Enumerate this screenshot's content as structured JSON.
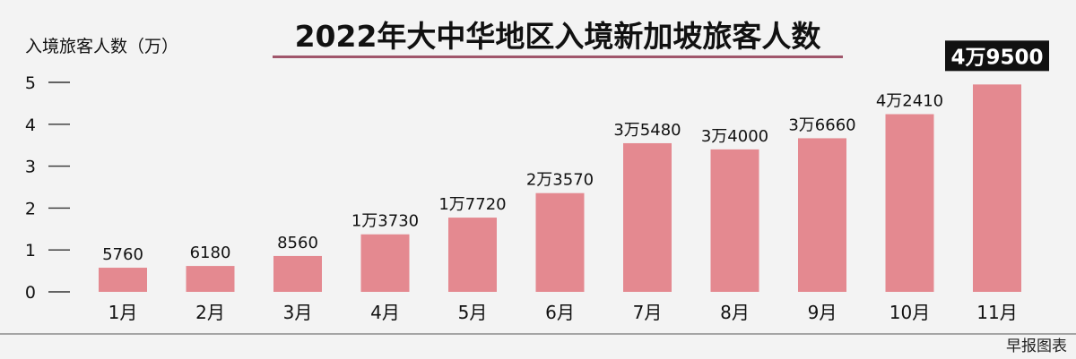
{
  "source": "早报图表",
  "chart_data": {
    "type": "bar",
    "title": "2022年大中华地区入境新加坡旅客人数",
    "ylabel": "入境旅客人数（万）",
    "ylim": [
      0,
      5
    ],
    "yticks": [
      "0",
      "1",
      "2",
      "3",
      "4",
      "5"
    ],
    "grid": false,
    "bar_color": "#e48990",
    "highlight_label_bg": "#111111",
    "categories": [
      "1月",
      "2月",
      "3月",
      "4月",
      "5月",
      "6月",
      "7月",
      "8月",
      "9月",
      "10月",
      "11月"
    ],
    "values": [
      0.576,
      0.618,
      0.856,
      1.373,
      1.772,
      2.357,
      3.548,
      3.4,
      3.666,
      4.241,
      4.95
    ],
    "data_labels": [
      "5760",
      "6180",
      "8560",
      "1万3730",
      "1万7720",
      "2万3570",
      "3万5480",
      "3万4000",
      "3万6660",
      "4万2410",
      "4万9500"
    ]
  }
}
